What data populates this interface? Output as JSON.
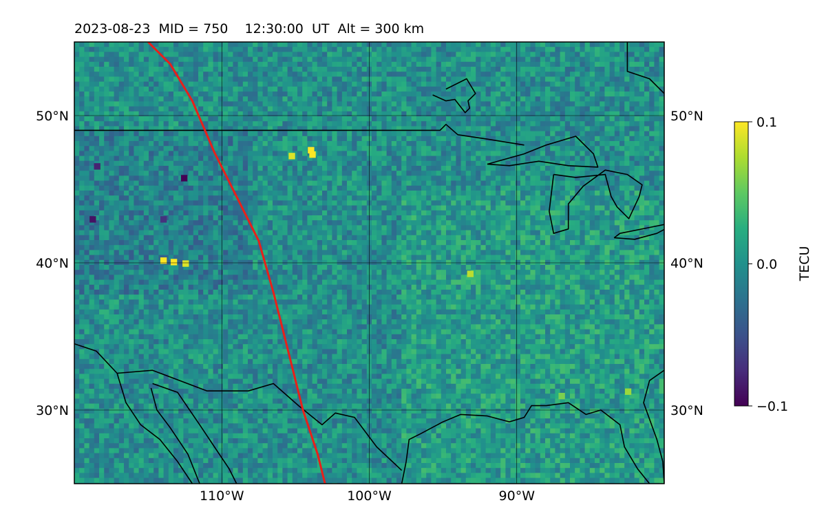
{
  "chart_data": {
    "type": "heatmap",
    "title": "2023-08-23  MID = 750    12:30:00  UT  Alt = 300 km",
    "xlim": [
      -120,
      -80
    ],
    "ylim": [
      25,
      55
    ],
    "x_ticks": [
      -110,
      -100,
      -90
    ],
    "x_tick_labels": [
      "110°W",
      "100°W",
      "90°W"
    ],
    "y_ticks": [
      30,
      40,
      50
    ],
    "y_tick_labels_left": [
      "30°N",
      "40°N",
      "50°N"
    ],
    "y_tick_labels_right": [
      "30°N",
      "40°N",
      "50°N"
    ],
    "grid": true,
    "colormap": "viridis",
    "colorbar": {
      "label": "TECU",
      "vmin": -0.1,
      "vmax": 0.1,
      "ticks": [
        -0.1,
        0.0,
        0.1
      ],
      "tick_labels": [
        "−0.1",
        "0.0",
        "0.1"
      ]
    },
    "background_mean_value": 0.0,
    "highlight_cells": [
      {
        "lon": -113.3,
        "lat": 40.1,
        "value": 0.1
      },
      {
        "lon": -114.0,
        "lat": 40.2,
        "value": 0.1
      },
      {
        "lon": -112.5,
        "lat": 40.0,
        "value": 0.09
      },
      {
        "lon": -105.3,
        "lat": 47.3,
        "value": 0.09
      },
      {
        "lon": -104.0,
        "lat": 47.7,
        "value": 0.1
      },
      {
        "lon": -103.9,
        "lat": 47.4,
        "value": 0.1
      },
      {
        "lon": -112.6,
        "lat": 45.8,
        "value": -0.1
      },
      {
        "lon": -118.5,
        "lat": 46.6,
        "value": -0.08
      },
      {
        "lon": -118.8,
        "lat": 43.0,
        "value": -0.09
      },
      {
        "lon": -114.0,
        "lat": 43.0,
        "value": -0.07
      },
      {
        "lon": -93.2,
        "lat": 39.3,
        "value": 0.08
      },
      {
        "lon": -87.0,
        "lat": 31.0,
        "value": 0.06
      },
      {
        "lon": -82.5,
        "lat": 31.3,
        "value": 0.07
      }
    ],
    "overlay_lines": [
      {
        "kind": "track",
        "color": "#e8201a",
        "points": [
          [
            -115.0,
            55.0
          ],
          [
            -113.5,
            53.5
          ],
          [
            -112.0,
            51.0
          ],
          [
            -110.5,
            47.5
          ],
          [
            -109.0,
            44.5
          ],
          [
            -107.5,
            41.5
          ],
          [
            -106.5,
            38.0
          ],
          [
            -105.5,
            34.0
          ],
          [
            -104.5,
            30.0
          ],
          [
            -103.5,
            27.0
          ],
          [
            -103.0,
            25.0
          ]
        ]
      }
    ],
    "coastlines": [
      {
        "name": "us-canada-border",
        "points": [
          [
            -120.0,
            49.0
          ],
          [
            -95.2,
            49.0
          ],
          [
            -94.8,
            49.4
          ],
          [
            -94.0,
            48.7
          ],
          [
            -92.0,
            48.4
          ],
          [
            -89.5,
            48.0
          ]
        ]
      },
      {
        "name": "lake-of-the-woods",
        "points": [
          [
            -95.7,
            51.4
          ],
          [
            -94.8,
            51.0
          ],
          [
            -94.2,
            51.1
          ],
          [
            -93.5,
            50.2
          ],
          [
            -93.2,
            50.5
          ],
          [
            -93.3,
            51.0
          ],
          [
            -92.8,
            51.5
          ],
          [
            -93.4,
            52.5
          ],
          [
            -94.8,
            51.8
          ]
        ]
      },
      {
        "name": "lake-superior",
        "points": [
          [
            -92.0,
            46.7
          ],
          [
            -89.5,
            47.4
          ],
          [
            -88.0,
            48.0
          ],
          [
            -86.0,
            48.6
          ],
          [
            -84.8,
            47.4
          ],
          [
            -84.5,
            46.5
          ],
          [
            -86.5,
            46.6
          ],
          [
            -88.5,
            46.9
          ],
          [
            -90.5,
            46.6
          ],
          [
            -92.0,
            46.7
          ]
        ]
      },
      {
        "name": "lake-michigan-huron",
        "points": [
          [
            -87.5,
            46.0
          ],
          [
            -86.0,
            45.8
          ],
          [
            -84.0,
            46.0
          ],
          [
            -83.6,
            44.5
          ],
          [
            -83.2,
            43.8
          ],
          [
            -82.4,
            43.0
          ],
          [
            -81.7,
            44.5
          ],
          [
            -81.5,
            45.3
          ],
          [
            -82.5,
            46.0
          ],
          [
            -84.0,
            46.3
          ],
          [
            -85.5,
            45.2
          ],
          [
            -86.5,
            44.0
          ],
          [
            -86.5,
            42.3
          ],
          [
            -87.5,
            42.0
          ],
          [
            -87.8,
            43.5
          ],
          [
            -87.5,
            46.0
          ]
        ]
      },
      {
        "name": "lake-erie",
        "points": [
          [
            -83.4,
            41.7
          ],
          [
            -82.0,
            41.6
          ],
          [
            -80.5,
            42.0
          ],
          [
            -79.0,
            42.8
          ],
          [
            -81.0,
            42.4
          ],
          [
            -83.0,
            42.0
          ],
          [
            -83.4,
            41.7
          ]
        ]
      },
      {
        "name": "hudson-bay-edge",
        "points": [
          [
            -82.5,
            55.0
          ],
          [
            -82.5,
            53.0
          ],
          [
            -81.0,
            52.5
          ],
          [
            -80.0,
            51.5
          ]
        ]
      },
      {
        "name": "gulf-coast",
        "points": [
          [
            -97.8,
            25.0
          ],
          [
            -97.5,
            26.5
          ],
          [
            -97.3,
            28.0
          ],
          [
            -96.5,
            28.4
          ],
          [
            -95.0,
            29.2
          ],
          [
            -93.8,
            29.7
          ],
          [
            -92.0,
            29.6
          ],
          [
            -90.5,
            29.2
          ],
          [
            -89.5,
            29.5
          ],
          [
            -89.0,
            30.3
          ],
          [
            -88.0,
            30.3
          ],
          [
            -86.5,
            30.5
          ],
          [
            -85.3,
            29.7
          ],
          [
            -84.3,
            30.0
          ],
          [
            -83.0,
            29.0
          ],
          [
            -82.7,
            27.5
          ],
          [
            -81.8,
            26.0
          ],
          [
            -81.0,
            25.0
          ]
        ]
      },
      {
        "name": "florida-atlantic",
        "points": [
          [
            -80.0,
            25.0
          ],
          [
            -80.1,
            26.5
          ],
          [
            -80.5,
            28.0
          ],
          [
            -81.4,
            30.5
          ],
          [
            -81.0,
            32.0
          ],
          [
            -80.0,
            32.7
          ]
        ]
      },
      {
        "name": "us-mexico-border",
        "points": [
          [
            -117.1,
            32.5
          ],
          [
            -114.7,
            32.7
          ],
          [
            -111.0,
            31.3
          ],
          [
            -108.2,
            31.3
          ],
          [
            -106.5,
            31.8
          ],
          [
            -104.8,
            30.3
          ],
          [
            -103.2,
            29.0
          ],
          [
            -102.3,
            29.8
          ],
          [
            -101.0,
            29.5
          ],
          [
            -99.5,
            27.5
          ],
          [
            -97.8,
            25.9
          ]
        ]
      },
      {
        "name": "baja-and-west-coast",
        "points": [
          [
            -120.0,
            34.5
          ],
          [
            -118.5,
            34.0
          ],
          [
            -117.1,
            32.5
          ],
          [
            -116.5,
            30.5
          ],
          [
            -115.5,
            29.0
          ],
          [
            -114.2,
            28.0
          ],
          [
            -113.0,
            26.5
          ],
          [
            -112.0,
            25.0
          ]
        ]
      },
      {
        "name": "gulf-of-california-east",
        "points": [
          [
            -114.7,
            31.8
          ],
          [
            -113.0,
            31.2
          ],
          [
            -111.5,
            29.0
          ],
          [
            -110.5,
            27.5
          ],
          [
            -109.5,
            26.0
          ],
          [
            -109.0,
            25.0
          ]
        ]
      },
      {
        "name": "gulf-of-california-west",
        "points": [
          [
            -114.8,
            31.5
          ],
          [
            -114.4,
            30.0
          ],
          [
            -113.5,
            28.8
          ],
          [
            -112.3,
            27.0
          ],
          [
            -111.5,
            25.0
          ]
        ]
      }
    ]
  }
}
